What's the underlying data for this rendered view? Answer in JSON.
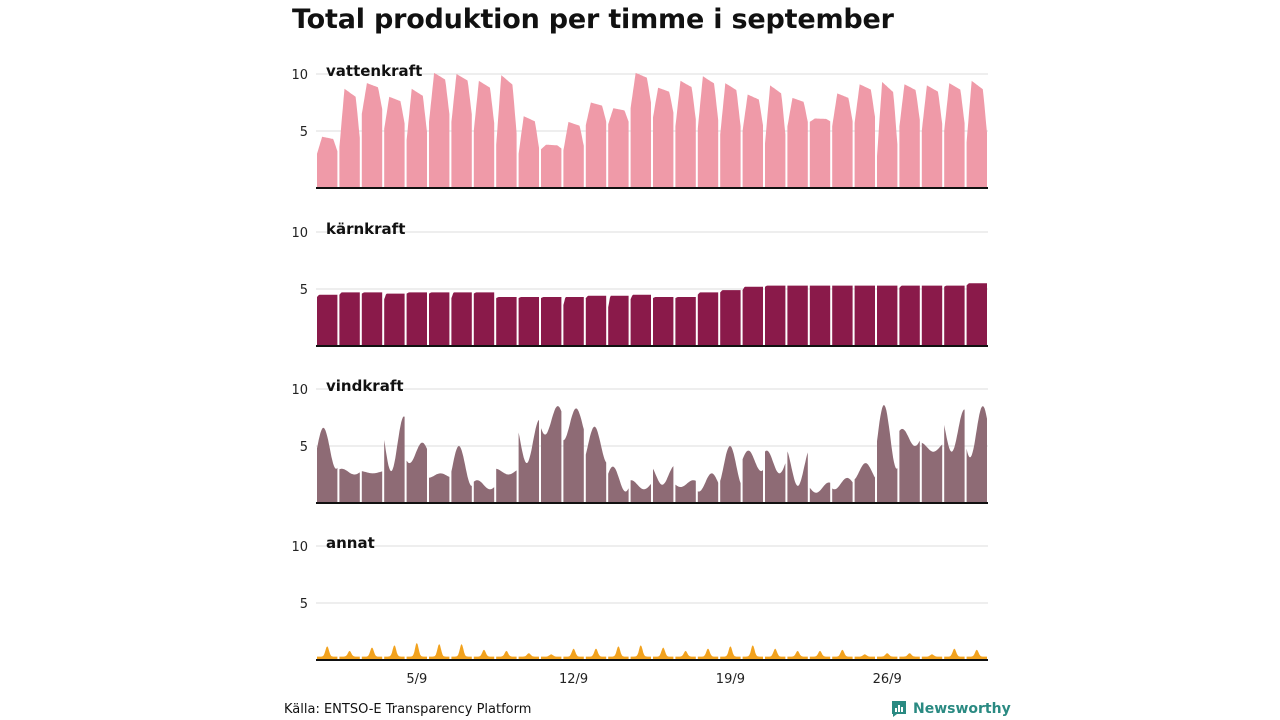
{
  "title": "Total produktion per timme i september",
  "source": "Källa: ENTSO-E Transparency Platform",
  "brand": {
    "name": "Newsworthy",
    "icon": "newsworthy-logo-icon",
    "color": "#2a8a82"
  },
  "chart_data": {
    "type": "area",
    "title": "Total produktion per timme i september",
    "xlabel": "",
    "ylabel": "",
    "x_unit": "timme",
    "x_range": [
      "2019-09-01",
      "2019-09-30"
    ],
    "x_ticks": [
      {
        "label": "5/9",
        "day": 5
      },
      {
        "label": "12/9",
        "day": 12
      },
      {
        "label": "19/9",
        "day": 19
      },
      {
        "label": "26/9",
        "day": 26
      }
    ],
    "y_ticks": [
      5,
      10
    ],
    "ylim": [
      0,
      10
    ],
    "grid": true,
    "series": [
      {
        "name": "vattenkraft",
        "color": "#ef9aa8",
        "daily_min": [
          3.0,
          3.6,
          6.5,
          5.2,
          4.2,
          5.8,
          5.8,
          5.0,
          3.8,
          3.0,
          3.4,
          3.3,
          5.5,
          5.6,
          7.0,
          6.2,
          5.4,
          5.2,
          4.7,
          5.0,
          3.9,
          5.4,
          5.8,
          5.4,
          5.7,
          2.8,
          5.4,
          5.0,
          5.0,
          4.0
        ],
        "daily_max": [
          4.5,
          8.7,
          9.2,
          8.0,
          8.7,
          10.1,
          10.0,
          9.4,
          9.9,
          6.3,
          3.8,
          5.8,
          7.5,
          7.0,
          10.1,
          8.8,
          9.4,
          9.8,
          9.2,
          8.2,
          9.0,
          7.9,
          6.1,
          8.3,
          9.1,
          9.3,
          9.1,
          9.0,
          9.2,
          9.4
        ]
      },
      {
        "name": "kärnkraft",
        "color": "#8a1a4a",
        "daily_min": [
          4.3,
          4.5,
          4.6,
          4.1,
          4.6,
          4.6,
          4.2,
          4.6,
          4.2,
          4.2,
          4.2,
          3.6,
          4.2,
          3.4,
          4.1,
          4.2,
          4.2,
          4.5,
          4.7,
          4.9,
          5.2,
          5.3,
          5.3,
          5.3,
          5.3,
          5.3,
          5.1,
          5.3,
          5.2,
          5.3
        ],
        "daily_max": [
          4.5,
          4.7,
          4.7,
          4.6,
          4.7,
          4.7,
          4.7,
          4.7,
          4.3,
          4.3,
          4.3,
          4.3,
          4.4,
          4.4,
          4.5,
          4.3,
          4.3,
          4.7,
          4.9,
          5.2,
          5.3,
          5.3,
          5.3,
          5.3,
          5.3,
          5.3,
          5.3,
          5.3,
          5.3,
          5.5
        ]
      },
      {
        "name": "vindkraft",
        "color": "#8e6b75",
        "daily_min": [
          3.0,
          2.5,
          2.6,
          2.8,
          3.5,
          2.2,
          1.5,
          1.2,
          2.5,
          3.5,
          6.0,
          5.5,
          3.5,
          1.0,
          1.2,
          1.6,
          1.4,
          1.0,
          1.5,
          2.8,
          2.6,
          1.5,
          0.9,
          1.2,
          2.0,
          3.0,
          5.0,
          4.5,
          4.5,
          4.0
        ],
        "daily_max": [
          6.6,
          3.0,
          2.8,
          7.6,
          5.3,
          2.6,
          5.0,
          2.0,
          3.0,
          7.3,
          8.5,
          8.3,
          6.7,
          3.2,
          2.0,
          3.3,
          2.0,
          2.6,
          5.0,
          4.6,
          4.6,
          4.8,
          1.8,
          2.2,
          3.5,
          8.6,
          6.5,
          5.3,
          8.2,
          8.5
        ]
      },
      {
        "name": "annat",
        "color": "#f2a21e",
        "daily_min": [
          0.3,
          0.3,
          0.3,
          0.3,
          0.3,
          0.3,
          0.3,
          0.3,
          0.3,
          0.3,
          0.3,
          0.3,
          0.3,
          0.3,
          0.3,
          0.3,
          0.3,
          0.3,
          0.3,
          0.3,
          0.3,
          0.3,
          0.3,
          0.3,
          0.3,
          0.3,
          0.3,
          0.3,
          0.3,
          0.3
        ],
        "daily_max": [
          1.2,
          0.8,
          1.1,
          1.3,
          1.5,
          1.4,
          1.4,
          0.9,
          0.8,
          0.6,
          0.5,
          1.0,
          1.0,
          1.2,
          1.3,
          1.1,
          0.8,
          1.0,
          1.2,
          1.3,
          1.0,
          0.8,
          0.8,
          0.9,
          0.5,
          0.6,
          0.6,
          0.5,
          1.0,
          0.9
        ]
      }
    ]
  }
}
